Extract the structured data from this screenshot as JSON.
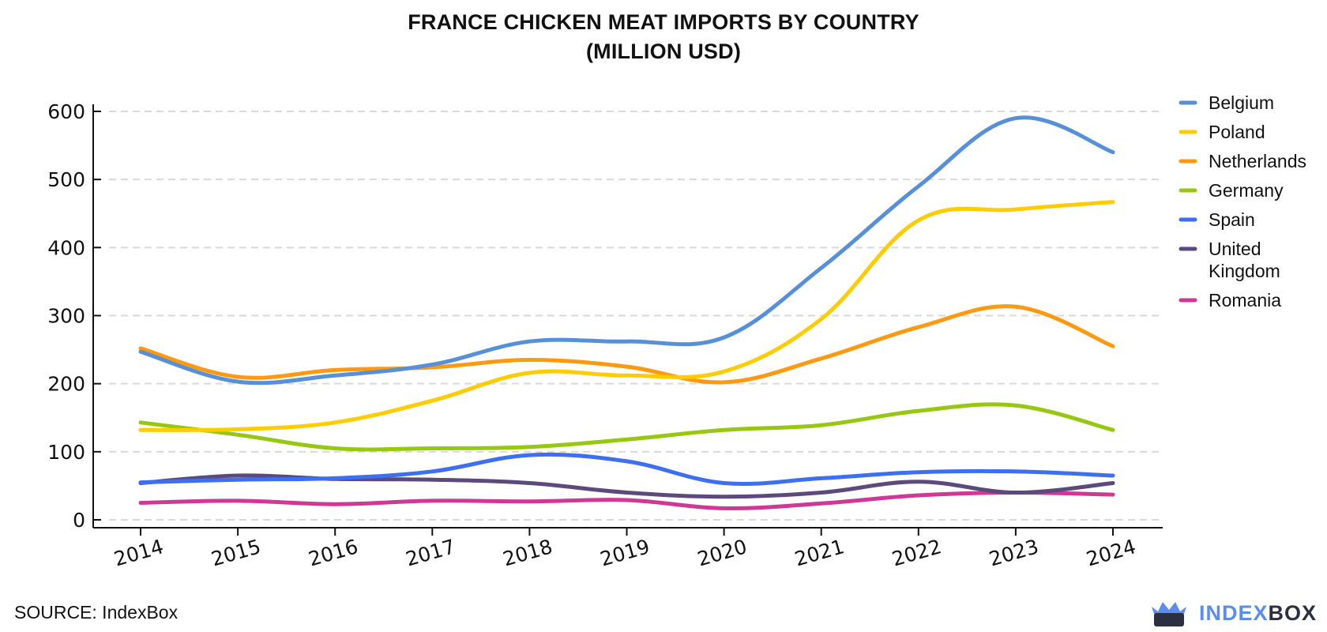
{
  "title_lines": [
    "FRANCE CHICKEN MEAT IMPORTS BY COUNTRY",
    "(MILLION USD)"
  ],
  "source": "SOURCE: IndexBox",
  "logo": {
    "part1": "INDEX",
    "part2": "BOX",
    "icon": "crown-box-icon",
    "color1": "#5b8def",
    "color2": "#2c2f3f"
  },
  "chart_data": {
    "type": "line",
    "title": "FRANCE CHICKEN MEAT IMPORTS BY COUNTRY (MILLION USD)",
    "categories": [
      "2014",
      "2015",
      "2016",
      "2017",
      "2018",
      "2019",
      "2020",
      "2021",
      "2022",
      "2023",
      "2024"
    ],
    "ylim": [
      0,
      600
    ],
    "yticks": [
      0,
      100,
      200,
      300,
      400,
      500,
      600
    ],
    "grid": true,
    "legend_position": "right",
    "series": [
      {
        "name": "Belgium",
        "color": "#5590d9",
        "values": [
          247,
          203,
          212,
          228,
          262,
          262,
          268,
          370,
          490,
          590,
          540
        ]
      },
      {
        "name": "Poland",
        "color": "#ffcc00",
        "values": [
          132,
          133,
          143,
          175,
          216,
          212,
          218,
          295,
          440,
          456,
          467
        ]
      },
      {
        "name": "Netherlands",
        "color": "#ff9910",
        "values": [
          252,
          210,
          220,
          224,
          235,
          225,
          202,
          237,
          283,
          313,
          255
        ]
      },
      {
        "name": "Germany",
        "color": "#96c80f",
        "values": [
          143,
          125,
          105,
          105,
          107,
          118,
          132,
          139,
          160,
          168,
          132
        ]
      },
      {
        "name": "Spain",
        "color": "#3d6ff2",
        "values": [
          55,
          59,
          61,
          71,
          95,
          86,
          54,
          61,
          70,
          71,
          65
        ]
      },
      {
        "name": "United Kingdom",
        "legend_lines": [
          "United",
          "Kingdom"
        ],
        "color": "#5c4a7d",
        "values": [
          54,
          65,
          60,
          59,
          54,
          40,
          34,
          40,
          56,
          40,
          54
        ]
      },
      {
        "name": "Romania",
        "color": "#d03896",
        "values": [
          25,
          28,
          23,
          28,
          27,
          29,
          17,
          24,
          36,
          40,
          37
        ]
      }
    ]
  }
}
